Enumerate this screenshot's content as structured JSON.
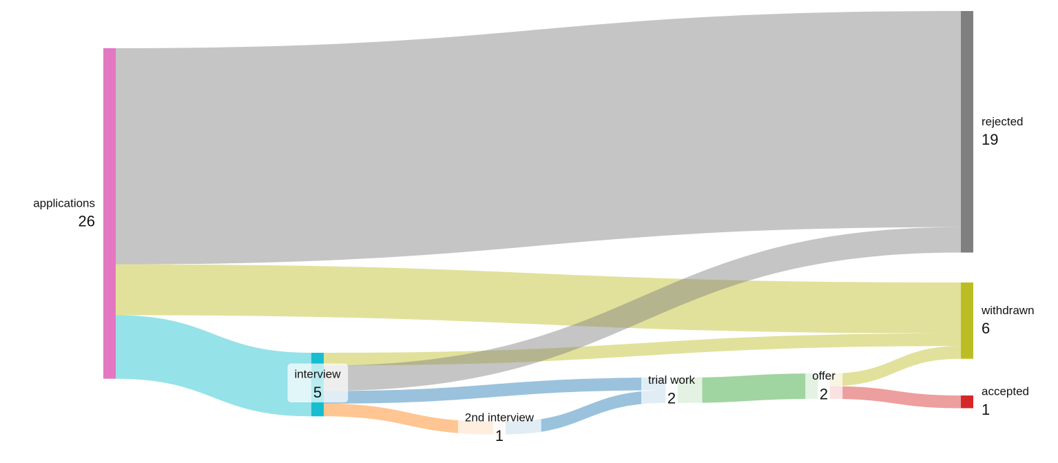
{
  "chart_data": {
    "type": "sankey",
    "nodes": [
      {
        "label": "applications",
        "value": 26,
        "color": "#e377c2"
      },
      {
        "label": "interview",
        "value": 5,
        "color": "#17becf"
      },
      {
        "label": "2nd interview",
        "value": 1,
        "color": "#ff7f0e"
      },
      {
        "label": "trial work",
        "value": 2,
        "color": "#1f77b4"
      },
      {
        "label": "offer",
        "value": 2,
        "color": "#2ca02c"
      },
      {
        "label": "rejected",
        "value": 19,
        "color": "#7f7f7f"
      },
      {
        "label": "withdrawn",
        "value": 6,
        "color": "#bcbd22"
      },
      {
        "label": "accepted",
        "value": 1,
        "color": "#d62728"
      }
    ],
    "links": [
      {
        "source": 0,
        "target": 5,
        "value": 17
      },
      {
        "source": 0,
        "target": 6,
        "value": 4
      },
      {
        "source": 0,
        "target": 1,
        "value": 5
      },
      {
        "source": 1,
        "target": 6,
        "value": 1
      },
      {
        "source": 1,
        "target": 5,
        "value": 2
      },
      {
        "source": 1,
        "target": 3,
        "value": 1
      },
      {
        "source": 1,
        "target": 2,
        "value": 1
      },
      {
        "source": 2,
        "target": 3,
        "value": 1
      },
      {
        "source": 3,
        "target": 4,
        "value": 2
      },
      {
        "source": 4,
        "target": 6,
        "value": 1
      },
      {
        "source": 4,
        "target": 7,
        "value": 1
      }
    ]
  }
}
